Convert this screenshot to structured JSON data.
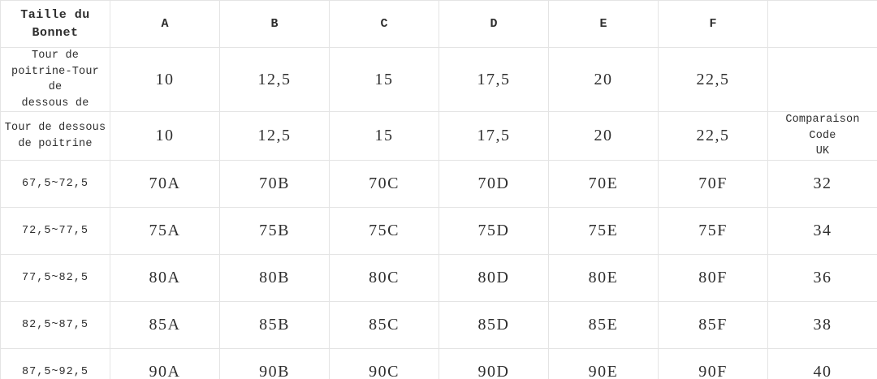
{
  "page": {
    "background_color": "#ffffff",
    "text_color": "#2e2e2e",
    "grid_line_color": "#e4e4e4"
  },
  "table": {
    "rows": [
      {
        "cells": [
          "Taille du\nBonnet",
          "A",
          "B",
          "C",
          "D",
          "E",
          "F",
          ""
        ]
      },
      {
        "cells": [
          "Tour de\npoitrine-Tour de\ndessous de",
          "10",
          "12,5",
          "15",
          "17,5",
          "20",
          "22,5",
          ""
        ]
      },
      {
        "cells": [
          "Tour de dessous\nde poitrine",
          "10",
          "12,5",
          "15",
          "17,5",
          "20",
          "22,5",
          "Comparaison Code\nUK"
        ]
      },
      {
        "cells": [
          "67,5~72,5",
          "70A",
          "70B",
          "70C",
          "70D",
          "70E",
          "70F",
          "32"
        ]
      },
      {
        "cells": [
          "72,5~77,5",
          "75A",
          "75B",
          "75C",
          "75D",
          "75E",
          "75F",
          "34"
        ]
      },
      {
        "cells": [
          "77,5~82,5",
          "80A",
          "80B",
          "80C",
          "80D",
          "80E",
          "80F",
          "36"
        ]
      },
      {
        "cells": [
          "82,5~87,5",
          "85A",
          "85B",
          "85C",
          "85D",
          "85E",
          "85F",
          "38"
        ]
      },
      {
        "cells": [
          "87,5~92,5",
          "90A",
          "90B",
          "90C",
          "90D",
          "90E",
          "90F",
          "40"
        ]
      }
    ]
  },
  "chart_data": {
    "type": "table",
    "title": "Taille du Bonnet (tableau des tailles de soutien-gorge)",
    "columns": [
      "Taille du Bonnet",
      "A",
      "B",
      "C",
      "D",
      "E",
      "F",
      ""
    ],
    "rows": [
      [
        "Tour de poitrine-Tour de dessous de",
        "10",
        "12,5",
        "15",
        "17,5",
        "20",
        "22,5",
        ""
      ],
      [
        "Tour de dessous de poitrine",
        "10",
        "12,5",
        "15",
        "17,5",
        "20",
        "22,5",
        "Comparaison Code UK"
      ],
      [
        "67,5~72,5",
        "70A",
        "70B",
        "70C",
        "70D",
        "70E",
        "70F",
        "32"
      ],
      [
        "72,5~77,5",
        "75A",
        "75B",
        "75C",
        "75D",
        "75E",
        "75F",
        "34"
      ],
      [
        "77,5~82,5",
        "80A",
        "80B",
        "80C",
        "80D",
        "80E",
        "80F",
        "36"
      ],
      [
        "82,5~87,5",
        "85A",
        "85B",
        "85C",
        "85D",
        "85E",
        "85F",
        "38"
      ],
      [
        "87,5~92,5",
        "90A",
        "90B",
        "90C",
        "90D",
        "90E",
        "90F",
        "40"
      ]
    ]
  }
}
